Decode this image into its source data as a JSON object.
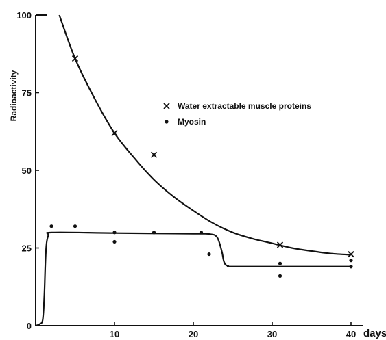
{
  "chart_data": {
    "type": "scatter",
    "ylabel": "Radioactivity",
    "xunit": "days",
    "xlim": [
      0,
      40
    ],
    "ylim": [
      0,
      100
    ],
    "x_ticks": [
      {
        "value": 10,
        "label": "10"
      },
      {
        "value": 20,
        "label": "20"
      },
      {
        "value": 30,
        "label": "30"
      },
      {
        "value": 40,
        "label": "40"
      }
    ],
    "y_ticks": [
      {
        "value": 0,
        "label": "0"
      },
      {
        "value": 25,
        "label": "25"
      },
      {
        "value": 50,
        "label": "50"
      },
      {
        "value": 75,
        "label": "75"
      },
      {
        "value": 100,
        "label": "100"
      }
    ],
    "grid": false,
    "legend_position": "top-right",
    "series": [
      {
        "name": "Water extractable muscle proteins",
        "marker": "x",
        "points": [
          [
            5,
            86
          ],
          [
            10,
            62
          ],
          [
            15,
            55
          ],
          [
            31,
            26
          ],
          [
            40,
            23
          ]
        ],
        "curve": [
          [
            3,
            100
          ],
          [
            5,
            86
          ],
          [
            7.5,
            73
          ],
          [
            10,
            62
          ],
          [
            12.5,
            54
          ],
          [
            15,
            47
          ],
          [
            17.5,
            41.5
          ],
          [
            20,
            37
          ],
          [
            22.5,
            33
          ],
          [
            25,
            30
          ],
          [
            27.5,
            28
          ],
          [
            30,
            26.5
          ],
          [
            32.5,
            25
          ],
          [
            35,
            24
          ],
          [
            37.5,
            23.2
          ],
          [
            40,
            22.8
          ]
        ]
      },
      {
        "name": "Myosin",
        "marker": "dot",
        "points": [
          [
            2,
            32
          ],
          [
            5,
            32
          ],
          [
            10,
            30
          ],
          [
            10,
            27
          ],
          [
            15,
            30
          ],
          [
            21,
            30
          ],
          [
            22,
            23
          ],
          [
            31,
            20
          ],
          [
            31,
            16
          ],
          [
            40,
            21
          ],
          [
            40,
            19
          ]
        ],
        "curve": [
          [
            0,
            0
          ],
          [
            0.5,
            0.5
          ],
          [
            0.9,
            2
          ],
          [
            1.1,
            10
          ],
          [
            1.3,
            24
          ],
          [
            1.6,
            29
          ],
          [
            2.2,
            30
          ],
          [
            10,
            29.8
          ],
          [
            20,
            29.6
          ],
          [
            22,
            29.5
          ],
          [
            23,
            28.5
          ],
          [
            23.6,
            24
          ],
          [
            23.9,
            20.5
          ],
          [
            24.4,
            19.2
          ],
          [
            26,
            19
          ],
          [
            40,
            19
          ]
        ]
      }
    ]
  }
}
